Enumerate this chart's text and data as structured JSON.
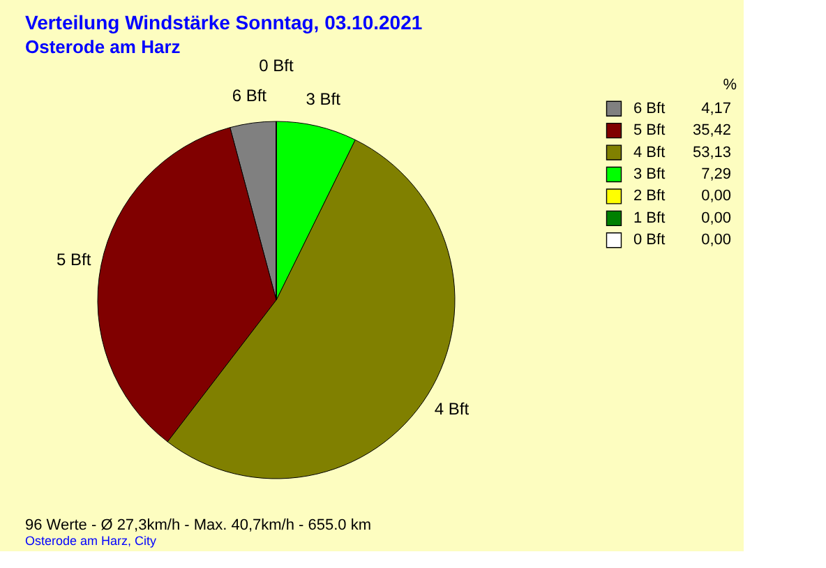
{
  "chart_data": {
    "type": "pie",
    "title": "Verteilung Windstärke  Sonntag, 03.10.2021",
    "subtitle": "Osterode am Harz",
    "legend_title": "%",
    "categories": [
      "6 Bft",
      "5 Bft",
      "4 Bft",
      "3 Bft",
      "2 Bft",
      "1 Bft",
      "0 Bft"
    ],
    "values": [
      4.17,
      35.42,
      53.13,
      7.29,
      0,
      0,
      0
    ],
    "value_labels": [
      "4,17",
      "35,42",
      "53,13",
      "7,29",
      "0,00",
      "0,00",
      "0,00"
    ],
    "colors": [
      "#808080",
      "#800000",
      "#808000",
      "#00ff00",
      "#ffff00",
      "#008000",
      "#ffffff"
    ],
    "legend": "top right",
    "annotations": [
      "96 Werte   -   Ø 27,3km/h  -  Max. 40,7km/h   -   655.0 km",
      "Osterode am Harz, City"
    ]
  }
}
